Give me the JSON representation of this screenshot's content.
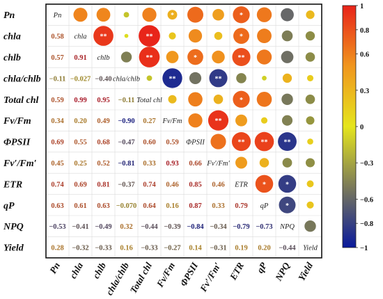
{
  "chart_data": {
    "type": "heatmap",
    "variables": [
      "Pn",
      "chla",
      "chlb",
      "chla/chlb",
      "Total chl",
      "Fv/Fm",
      "ΦPSII",
      "Fv′/Fm′",
      "ETR",
      "qP",
      "NPQ",
      "Yield"
    ],
    "lower_triangle_values": [
      [],
      [
        "0.58"
      ],
      [
        "0.57",
        "0.91"
      ],
      [
        "−0.11",
        "−0.027",
        "−0.40"
      ],
      [
        "0.59",
        "0.99",
        "0.95",
        "−0.11"
      ],
      [
        "0.34",
        "0.20",
        "0.49",
        "−0.90",
        "0.27"
      ],
      [
        "0.69",
        "0.55",
        "0.68",
        "−0.47",
        "0.60",
        "0.59"
      ],
      [
        "0.45",
        "0.25",
        "0.52",
        "−0.81",
        "0.33",
        "0.93",
        "0.66"
      ],
      [
        "0.74",
        "0.69",
        "0.81",
        "−0.37",
        "0.74",
        "0.46",
        "0.85",
        "0.46"
      ],
      [
        "0.63",
        "0.61",
        "0.63",
        "−0.070",
        "0.64",
        "0.16",
        "0.87",
        "0.33",
        "0.79"
      ],
      [
        "−0.53",
        "−0.41",
        "−0.49",
        "0.32",
        "−0.44",
        "−0.39",
        "−0.84",
        "−0.34",
        "−0.79",
        "−0.73"
      ],
      [
        "0.28",
        "−0.32",
        "−0.33",
        "0.16",
        "−0.33",
        "−0.27",
        "0.14",
        "−0.31",
        "0.19",
        "0.20",
        "−0.44"
      ]
    ],
    "significance_marks": [
      {
        "row": 0,
        "col": 5,
        "mark": "*"
      },
      {
        "row": 0,
        "col": 8,
        "mark": "*"
      },
      {
        "row": 1,
        "col": 2,
        "mark": "**"
      },
      {
        "row": 1,
        "col": 4,
        "mark": "**"
      },
      {
        "row": 1,
        "col": 8,
        "mark": "*"
      },
      {
        "row": 2,
        "col": 4,
        "mark": "**"
      },
      {
        "row": 2,
        "col": 6,
        "mark": "*"
      },
      {
        "row": 2,
        "col": 8,
        "mark": "**"
      },
      {
        "row": 3,
        "col": 5,
        "mark": "**"
      },
      {
        "row": 3,
        "col": 7,
        "mark": "**"
      },
      {
        "row": 4,
        "col": 8,
        "mark": "*"
      },
      {
        "row": 5,
        "col": 7,
        "mark": "**"
      },
      {
        "row": 6,
        "col": 8,
        "mark": "**"
      },
      {
        "row": 6,
        "col": 9,
        "mark": "**"
      },
      {
        "row": 6,
        "col": 10,
        "mark": "**"
      },
      {
        "row": 8,
        "col": 9,
        "mark": "*"
      },
      {
        "row": 8,
        "col": 10,
        "mark": "*"
      },
      {
        "row": 9,
        "col": 10,
        "mark": "*"
      }
    ],
    "colorbar": {
      "range": [
        -1,
        1
      ],
      "ticks": [
        "1",
        "0.8",
        "0.6",
        "0.3",
        "0",
        "−0.3",
        "−0.6",
        "−0.8",
        "−1"
      ],
      "colors": {
        "max": "#e8231a",
        "mid": "#e5e51d",
        "min": "#0a1a9c"
      }
    },
    "grid": true
  }
}
